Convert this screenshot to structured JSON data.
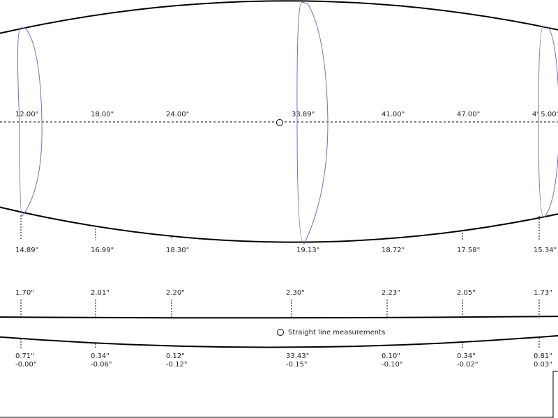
{
  "colors": {
    "outline": "#000000",
    "rocker_curve": "#6f6fbf",
    "guide": "#000000",
    "text": "#222222"
  },
  "outline_view": {
    "station_labels": [
      "12.00\"",
      "18.00\"",
      "24.00\"",
      "33.89\"",
      "41.00\"",
      "47.00\"",
      "4' 5.00\""
    ],
    "width_labels": [
      "14.89\"",
      "16.99\"",
      "18.30\"",
      "19.13\"",
      "18.72\"",
      "17.58\"",
      "15.34\""
    ]
  },
  "profile_view": {
    "thickness_labels": [
      "1.70\"",
      "2.01\"",
      "2.20\"",
      "2.30\"",
      "2.23\"",
      "2.05\"",
      "1.73\""
    ],
    "legend": {
      "icon": "circle-icon",
      "label": "Straight line measurements"
    },
    "bottom_values": [
      {
        "top": "0.71\"",
        "bottom": "-0.00\""
      },
      {
        "top": "0.34\"",
        "bottom": "-0.06\""
      },
      {
        "top": "0.12\"",
        "bottom": "-0.12\""
      },
      {
        "top": "33.43\"",
        "bottom": "-0.15\""
      },
      {
        "top": "0.10\"",
        "bottom": "-0.10\""
      },
      {
        "top": "0.34\"",
        "bottom": "-0.02\""
      },
      {
        "top": "0.81\"",
        "bottom": "0.03\""
      }
    ]
  }
}
